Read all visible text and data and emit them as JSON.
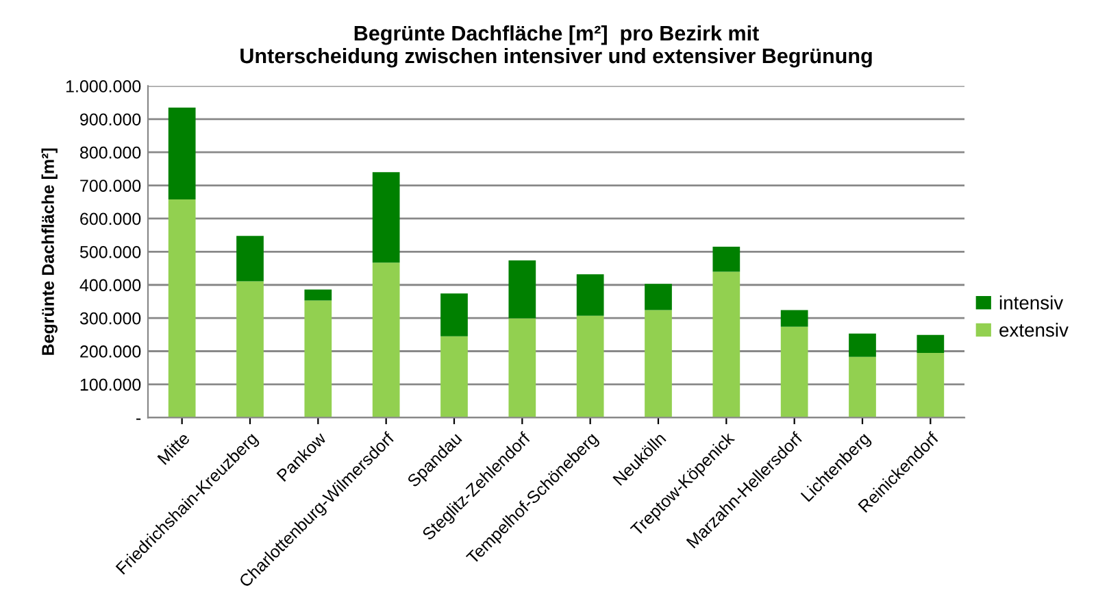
{
  "chart_data": {
    "type": "bar",
    "stacked": true,
    "title": "Begrünte Dachfläche [m²]  pro Bezirk mit\nUnterscheidung zwischen intensiver und extensiver Begrünung",
    "ylabel": "Begrünte Dachfläche [m²]",
    "categories": [
      "Mitte",
      "Friedrichshain-Kreuzberg",
      "Pankow",
      "Charlottenburg-Wilmersdorf",
      "Spandau",
      "Steglitz-Zehlendorf",
      "Tempelhof-Schöneberg",
      "Neukölln",
      "Treptow-Köpenick",
      "Marzahn-Hellersdorf",
      "Lichtenberg",
      "Reinickendorf"
    ],
    "series": [
      {
        "name": "extensiv",
        "color": "#92d050",
        "values": [
          658000,
          411000,
          353000,
          467000,
          245000,
          299000,
          307000,
          324000,
          440000,
          274000,
          183000,
          195000
        ]
      },
      {
        "name": "intensiv",
        "color": "#008000",
        "values": [
          277000,
          137000,
          33000,
          273000,
          129000,
          175000,
          125000,
          79000,
          75000,
          50000,
          70000,
          54000
        ]
      }
    ],
    "ylim": [
      0,
      1000000
    ],
    "yticks": [
      {
        "value": 0,
        "label": "-"
      },
      {
        "value": 100000,
        "label": "100.000"
      },
      {
        "value": 200000,
        "label": "200.000"
      },
      {
        "value": 300000,
        "label": "300.000"
      },
      {
        "value": 400000,
        "label": "400.000"
      },
      {
        "value": 500000,
        "label": "500.000"
      },
      {
        "value": 600000,
        "label": "600.000"
      },
      {
        "value": 700000,
        "label": "700.000"
      },
      {
        "value": 800000,
        "label": "800.000"
      },
      {
        "value": 900000,
        "label": "900.000"
      },
      {
        "value": 1000000,
        "label": "1.000.000"
      }
    ],
    "grid": "y",
    "legend": "right"
  }
}
